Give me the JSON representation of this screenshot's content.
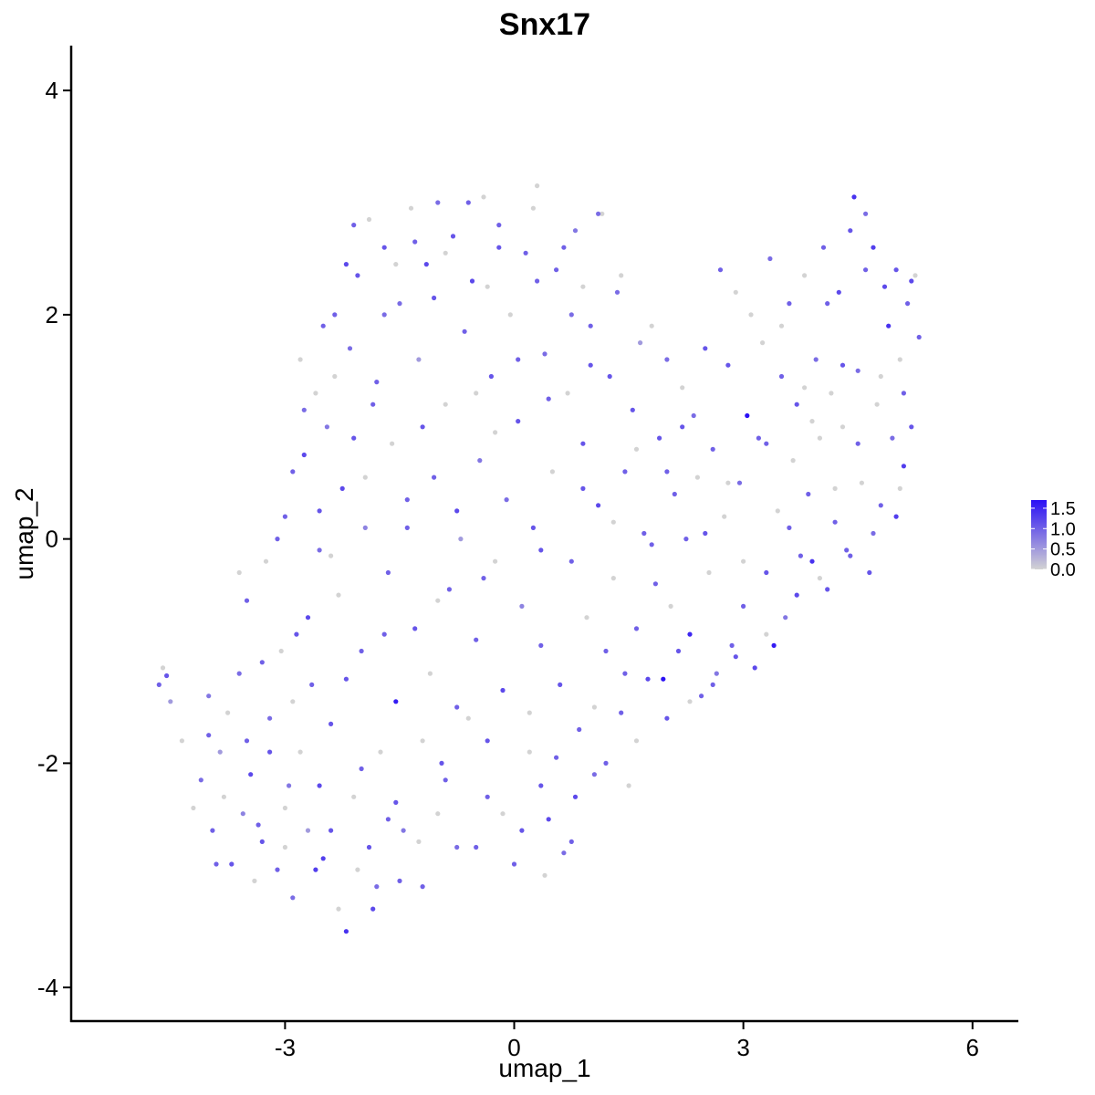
{
  "chart_data": {
    "type": "scatter",
    "title": "Snx17",
    "xlabel": "umap_1",
    "ylabel": "umap_2",
    "xlim": [
      -5.8,
      6.6
    ],
    "ylim": [
      -4.3,
      4.4
    ],
    "xticks": [
      -3,
      0,
      3,
      6
    ],
    "xtick_labels": [
      "-3",
      "0",
      "3",
      "6"
    ],
    "yticks": [
      -4,
      -2,
      0,
      2,
      4
    ],
    "ytick_labels": [
      "-4",
      "-2",
      "0",
      "2",
      "4"
    ],
    "grid": false,
    "color_scale": {
      "low": "#d3d3d3",
      "high": "#2a10f5",
      "min": 0,
      "max": 1.7,
      "ticks": [
        0,
        0.5,
        1.0,
        1.5
      ],
      "tick_labels": [
        "0.0",
        "0.5",
        "1.0",
        "1.5"
      ],
      "legend_position": "right"
    },
    "points": [
      [
        -4.65,
        -1.3,
        1.0
      ],
      [
        -4.55,
        -1.22,
        1.1
      ],
      [
        -4.5,
        -1.45,
        0.5
      ],
      [
        -4.6,
        -1.15,
        0.0
      ],
      [
        -4.35,
        -1.8,
        0.0
      ],
      [
        -4.1,
        -2.15,
        0.9
      ],
      [
        -4.0,
        -1.4,
        0.8
      ],
      [
        -3.95,
        -2.6,
        1.0
      ],
      [
        -3.85,
        -1.9,
        0.5
      ],
      [
        -3.8,
        -2.3,
        0.0
      ],
      [
        -3.7,
        -2.9,
        1.1
      ],
      [
        -3.6,
        -1.2,
        0.9
      ],
      [
        -3.55,
        -2.45,
        0.7
      ],
      [
        -3.5,
        -0.55,
        1.0
      ],
      [
        -3.45,
        -2.1,
        1.2
      ],
      [
        -3.4,
        -3.05,
        0.0
      ],
      [
        -3.3,
        -2.7,
        1.1
      ],
      [
        -3.25,
        -0.2,
        0.0
      ],
      [
        -3.2,
        -1.6,
        0.9
      ],
      [
        -3.1,
        -2.95,
        1.0
      ],
      [
        -3.05,
        -1.0,
        0.0
      ],
      [
        -3.0,
        0.2,
        1.0
      ],
      [
        -2.95,
        -2.2,
        0.8
      ],
      [
        -2.9,
        -3.2,
        0.9
      ],
      [
        -2.85,
        -0.85,
        1.1
      ],
      [
        -2.8,
        -1.9,
        0.0
      ],
      [
        -2.75,
        0.75,
        1.2
      ],
      [
        -2.7,
        -2.6,
        0.5
      ],
      [
        -2.65,
        -1.3,
        1.0
      ],
      [
        -2.6,
        1.3,
        0.0
      ],
      [
        -2.55,
        -0.1,
        0.9
      ],
      [
        -2.5,
        -2.85,
        1.3
      ],
      [
        -2.45,
        1.0,
        0.8
      ],
      [
        -2.4,
        -1.65,
        1.1
      ],
      [
        -2.35,
        2.0,
        1.0
      ],
      [
        -2.3,
        -0.5,
        0.0
      ],
      [
        -2.25,
        0.45,
        1.2
      ],
      [
        -2.2,
        -3.5,
        1.4
      ],
      [
        -2.15,
        1.7,
        0.9
      ],
      [
        -2.1,
        -2.3,
        0.0
      ],
      [
        -2.05,
        2.35,
        1.1
      ],
      [
        -2.0,
        -1.0,
        1.0
      ],
      [
        -1.95,
        0.1,
        0.7
      ],
      [
        -1.9,
        2.85,
        0.0
      ],
      [
        -1.85,
        -3.3,
        1.2
      ],
      [
        -1.8,
        1.4,
        1.0
      ],
      [
        -1.75,
        -1.9,
        0.0
      ],
      [
        -1.7,
        2.6,
        1.1
      ],
      [
        -1.65,
        -0.3,
        1.0
      ],
      [
        -1.6,
        0.85,
        0.0
      ],
      [
        -1.55,
        -1.45,
        1.6
      ],
      [
        -1.5,
        2.1,
        0.9
      ],
      [
        -1.45,
        -2.6,
        0.8
      ],
      [
        -1.4,
        0.35,
        1.0
      ],
      [
        -1.35,
        2.95,
        0.0
      ],
      [
        -1.3,
        -0.8,
        1.1
      ],
      [
        -1.25,
        1.6,
        0.5
      ],
      [
        -1.2,
        -3.1,
        1.0
      ],
      [
        -1.15,
        2.45,
        1.2
      ],
      [
        -1.1,
        -1.2,
        0.0
      ],
      [
        -1.05,
        0.55,
        1.0
      ],
      [
        -1.0,
        3.0,
        0.9
      ],
      [
        -0.95,
        -2.0,
        1.1
      ],
      [
        -0.9,
        1.2,
        0.0
      ],
      [
        -0.85,
        -0.45,
        1.0
      ],
      [
        -0.8,
        2.7,
        1.1
      ],
      [
        -0.75,
        -2.75,
        0.9
      ],
      [
        -0.7,
        0.0,
        0.5
      ],
      [
        -0.65,
        1.85,
        1.0
      ],
      [
        -0.6,
        -1.6,
        0.0
      ],
      [
        -0.55,
        2.3,
        1.2
      ],
      [
        -0.5,
        -0.9,
        1.0
      ],
      [
        -0.45,
        0.7,
        0.8
      ],
      [
        -0.4,
        3.05,
        0.0
      ],
      [
        -0.35,
        -2.3,
        1.0
      ],
      [
        -0.3,
        1.45,
        1.1
      ],
      [
        -0.25,
        -0.2,
        0.0
      ],
      [
        -0.2,
        2.8,
        1.0
      ],
      [
        -0.15,
        -1.35,
        1.2
      ],
      [
        -0.1,
        0.35,
        0.9
      ],
      [
        -0.05,
        2.0,
        0.0
      ],
      [
        0.0,
        -2.9,
        1.0
      ],
      [
        0.05,
        1.05,
        1.1
      ],
      [
        0.1,
        -0.6,
        0.7
      ],
      [
        0.15,
        2.55,
        1.0
      ],
      [
        0.2,
        -1.9,
        0.0
      ],
      [
        0.25,
        0.1,
        1.1
      ],
      [
        0.3,
        3.15,
        0.0
      ],
      [
        0.35,
        -0.95,
        1.0
      ],
      [
        0.4,
        1.65,
        0.9
      ],
      [
        0.45,
        -2.5,
        1.2
      ],
      [
        0.5,
        0.6,
        0.0
      ],
      [
        0.55,
        2.4,
        1.0
      ],
      [
        0.6,
        -1.3,
        1.1
      ],
      [
        0.65,
        -2.8,
        0.9
      ],
      [
        0.7,
        1.3,
        0.0
      ],
      [
        0.75,
        -0.2,
        1.0
      ],
      [
        0.8,
        2.75,
        0.8
      ],
      [
        0.85,
        -1.7,
        1.0
      ],
      [
        0.9,
        0.85,
        1.1
      ],
      [
        0.95,
        -0.7,
        0.0
      ],
      [
        1.0,
        1.9,
        1.0
      ],
      [
        1.05,
        -2.1,
        0.9
      ],
      [
        1.1,
        0.3,
        1.2
      ],
      [
        1.15,
        2.9,
        0.0
      ],
      [
        1.2,
        -1.0,
        1.0
      ],
      [
        1.25,
        1.45,
        1.1
      ],
      [
        1.3,
        -0.35,
        0.0
      ],
      [
        1.35,
        2.2,
        0.9
      ],
      [
        1.4,
        -1.55,
        1.0
      ],
      [
        1.45,
        0.6,
        1.0
      ],
      [
        1.5,
        -2.2,
        0.0
      ],
      [
        1.55,
        1.15,
        1.1
      ],
      [
        1.6,
        -0.8,
        1.0
      ],
      [
        1.65,
        1.75,
        0.5
      ],
      [
        1.7,
        0.05,
        1.0
      ],
      [
        1.75,
        -1.25,
        1.2
      ],
      [
        1.8,
        1.9,
        0.0
      ],
      [
        1.85,
        -0.4,
        1.0
      ],
      [
        1.9,
        0.9,
        1.1
      ],
      [
        1.95,
        -1.25,
        1.7
      ],
      [
        2.0,
        1.6,
        0.9
      ],
      [
        2.05,
        -0.6,
        0.0
      ],
      [
        2.1,
        0.4,
        1.0
      ],
      [
        2.15,
        -1.0,
        1.1
      ],
      [
        2.2,
        1.35,
        0.0
      ],
      [
        2.25,
        0.0,
        1.0
      ],
      [
        2.3,
        -0.85,
        1.5
      ],
      [
        2.35,
        1.1,
        0.9
      ],
      [
        2.4,
        0.55,
        0.0
      ],
      [
        2.45,
        -1.4,
        1.0
      ],
      [
        2.5,
        1.7,
        1.1
      ],
      [
        2.55,
        -0.3,
        0.0
      ],
      [
        2.6,
        0.8,
        1.0
      ],
      [
        2.65,
        -1.2,
        0.8
      ],
      [
        2.7,
        2.4,
        1.0
      ],
      [
        2.75,
        0.2,
        0.0
      ],
      [
        2.8,
        1.55,
        1.1
      ],
      [
        2.85,
        -0.95,
        1.0
      ],
      [
        2.9,
        2.2,
        0.0
      ],
      [
        2.95,
        0.5,
        0.9
      ],
      [
        3.0,
        -0.6,
        1.0
      ],
      [
        3.05,
        1.1,
        1.7
      ],
      [
        3.1,
        2.0,
        0.0
      ],
      [
        3.15,
        -1.15,
        1.2
      ],
      [
        3.2,
        0.9,
        1.0
      ],
      [
        3.25,
        1.75,
        0.0
      ],
      [
        3.3,
        -0.3,
        1.1
      ],
      [
        3.35,
        2.5,
        0.9
      ],
      [
        3.4,
        -0.95,
        1.6
      ],
      [
        3.45,
        0.25,
        0.0
      ],
      [
        3.5,
        1.45,
        1.0
      ],
      [
        3.55,
        -0.7,
        0.8
      ],
      [
        3.6,
        2.1,
        1.0
      ],
      [
        3.65,
        0.7,
        0.0
      ],
      [
        3.7,
        1.2,
        1.1
      ],
      [
        3.75,
        -0.15,
        1.0
      ],
      [
        3.8,
        2.35,
        0.0
      ],
      [
        3.85,
        0.4,
        1.0
      ],
      [
        3.9,
        -0.2,
        1.4
      ],
      [
        3.95,
        1.6,
        0.9
      ],
      [
        4.0,
        0.9,
        0.0
      ],
      [
        4.05,
        2.6,
        1.0
      ],
      [
        4.1,
        -0.45,
        1.1
      ],
      [
        4.15,
        1.3,
        0.0
      ],
      [
        4.2,
        0.15,
        1.0
      ],
      [
        4.25,
        2.2,
        1.2
      ],
      [
        4.3,
        1.0,
        0.0
      ],
      [
        4.35,
        -0.1,
        1.0
      ],
      [
        4.4,
        2.75,
        1.1
      ],
      [
        4.45,
        3.05,
        1.4
      ],
      [
        4.5,
        1.5,
        0.9
      ],
      [
        4.55,
        0.5,
        0.0
      ],
      [
        4.6,
        2.4,
        1.0
      ],
      [
        4.65,
        -0.3,
        1.1
      ],
      [
        4.7,
        2.6,
        1.3
      ],
      [
        4.75,
        1.2,
        0.0
      ],
      [
        4.8,
        0.3,
        1.0
      ],
      [
        4.85,
        2.25,
        1.2
      ],
      [
        4.9,
        1.9,
        1.4
      ],
      [
        4.95,
        0.9,
        0.9
      ],
      [
        5.0,
        2.4,
        1.1
      ],
      [
        5.05,
        1.6,
        0.0
      ],
      [
        5.1,
        0.65,
        1.3
      ],
      [
        5.15,
        2.1,
        1.0
      ],
      [
        5.2,
        1.0,
        1.1
      ],
      [
        5.25,
        2.35,
        0.0
      ],
      [
        5.3,
        1.8,
        1.0
      ],
      [
        5.2,
        2.3,
        1.2
      ],
      [
        5.0,
        0.2,
        1.3
      ],
      [
        -3.9,
        -2.9,
        1.0
      ],
      [
        -3.2,
        -1.9,
        1.1
      ],
      [
        -2.6,
        -2.95,
        1.3
      ],
      [
        -2.3,
        -3.3,
        0.0
      ],
      [
        -1.9,
        -2.75,
        1.1
      ],
      [
        -2.7,
        -0.7,
        1.2
      ],
      [
        -2.4,
        -0.15,
        0.0
      ],
      [
        -2.9,
        0.6,
        1.0
      ],
      [
        -2.1,
        0.9,
        1.1
      ],
      [
        -2.8,
        1.6,
        0.0
      ],
      [
        -2.5,
        1.9,
        1.0
      ],
      [
        -2.2,
        2.45,
        1.2
      ],
      [
        -1.7,
        2.0,
        0.9
      ],
      [
        -1.3,
        2.65,
        1.0
      ],
      [
        -0.9,
        2.55,
        0.0
      ],
      [
        -0.6,
        3.0,
        1.0
      ],
      [
        -0.2,
        2.6,
        1.1
      ],
      [
        0.25,
        2.95,
        0.0
      ],
      [
        0.65,
        2.6,
        1.0
      ],
      [
        0.9,
        2.25,
        0.0
      ],
      [
        1.1,
        2.9,
        0.9
      ],
      [
        0.4,
        -3.0,
        0.0
      ],
      [
        0.1,
        -2.6,
        1.1
      ],
      [
        -0.5,
        -2.75,
        1.0
      ],
      [
        -1.0,
        -2.45,
        0.0
      ],
      [
        -1.5,
        -3.05,
        1.0
      ],
      [
        -1.8,
        -3.1,
        0.9
      ],
      [
        0.8,
        -2.3,
        1.2
      ],
      [
        1.2,
        -2.0,
        1.0
      ],
      [
        1.6,
        -1.8,
        0.0
      ],
      [
        2.0,
        -1.6,
        1.1
      ],
      [
        2.3,
        -1.45,
        0.0
      ],
      [
        2.6,
        -1.3,
        1.0
      ],
      [
        2.9,
        -1.05,
        1.1
      ],
      [
        3.3,
        -0.85,
        0.0
      ],
      [
        3.7,
        -0.5,
        1.2
      ],
      [
        4.0,
        -0.35,
        0.0
      ],
      [
        4.4,
        -0.15,
        1.0
      ],
      [
        4.7,
        0.05,
        0.9
      ],
      [
        -3.5,
        -1.8,
        1.0
      ],
      [
        -3.0,
        -2.4,
        0.0
      ],
      [
        -2.55,
        -2.2,
        1.2
      ],
      [
        -2.0,
        -2.05,
        1.0
      ],
      [
        -1.55,
        -2.35,
        1.1
      ],
      [
        -1.2,
        -1.8,
        0.0
      ],
      [
        -0.75,
        -1.5,
        1.0
      ],
      [
        -0.35,
        -1.8,
        1.1
      ],
      [
        0.2,
        -1.55,
        0.0
      ],
      [
        0.55,
        -1.95,
        1.0
      ],
      [
        -3.3,
        -1.1,
        1.0
      ],
      [
        -2.9,
        -1.45,
        0.0
      ],
      [
        -2.2,
        -1.25,
        1.1
      ],
      [
        -1.7,
        -0.85,
        1.0
      ],
      [
        -1.0,
        -0.55,
        0.0
      ],
      [
        -0.4,
        -0.35,
        1.0
      ],
      [
        0.35,
        -0.1,
        1.1
      ],
      [
        -3.6,
        -0.3,
        0.0
      ],
      [
        -3.1,
        0.0,
        1.0
      ],
      [
        -2.55,
        0.25,
        1.1
      ],
      [
        -1.95,
        0.55,
        0.0
      ],
      [
        -1.4,
        0.1,
        1.0
      ],
      [
        -0.75,
        0.25,
        1.2
      ],
      [
        -0.25,
        0.95,
        0.0
      ],
      [
        0.45,
        1.25,
        1.0
      ],
      [
        1.0,
        1.55,
        1.1
      ],
      [
        -2.75,
        1.15,
        0.9
      ],
      [
        -2.35,
        1.45,
        0.0
      ],
      [
        -1.85,
        1.2,
        1.0
      ],
      [
        -1.2,
        1.0,
        1.1
      ],
      [
        -0.5,
        1.3,
        0.0
      ],
      [
        0.05,
        1.6,
        1.0
      ],
      [
        0.75,
        2.0,
        0.9
      ],
      [
        1.4,
        2.35,
        0.0
      ],
      [
        -2.1,
        2.8,
        1.0
      ],
      [
        -1.55,
        2.45,
        0.0
      ],
      [
        -1.05,
        2.15,
        1.1
      ],
      [
        -0.35,
        2.25,
        0.0
      ],
      [
        0.3,
        2.3,
        1.0
      ],
      [
        2.2,
        1.0,
        1.1
      ],
      [
        2.8,
        0.5,
        0.0
      ],
      [
        3.3,
        0.85,
        1.0
      ],
      [
        3.8,
        1.35,
        0.0
      ],
      [
        4.3,
        1.55,
        1.1
      ],
      [
        4.8,
        1.45,
        0.0
      ],
      [
        5.1,
        1.3,
        1.0
      ],
      [
        3.5,
        1.9,
        0.0
      ],
      [
        4.1,
        2.1,
        1.0
      ],
      [
        4.6,
        2.9,
        0.9
      ],
      [
        3.9,
        1.05,
        0.0
      ],
      [
        4.5,
        0.85,
        1.0
      ],
      [
        5.05,
        0.45,
        0.0
      ],
      [
        2.5,
        0.05,
        1.1
      ],
      [
        3.0,
        -0.2,
        0.0
      ],
      [
        3.6,
        0.1,
        1.0
      ],
      [
        4.2,
        0.45,
        0.0
      ],
      [
        1.8,
        -0.05,
        1.0
      ],
      [
        1.3,
        0.15,
        0.0
      ],
      [
        0.9,
        0.45,
        1.1
      ],
      [
        1.6,
        0.8,
        0.0
      ],
      [
        2.0,
        0.6,
        1.0
      ],
      [
        -4.2,
        -2.4,
        0.0
      ],
      [
        -4.0,
        -1.75,
        1.0
      ],
      [
        -3.75,
        -1.55,
        0.0
      ],
      [
        -3.35,
        -2.55,
        1.0
      ],
      [
        -3.0,
        -2.75,
        0.0
      ],
      [
        -2.4,
        -2.6,
        1.1
      ],
      [
        -2.05,
        -2.95,
        0.0
      ],
      [
        -1.65,
        -2.5,
        1.0
      ],
      [
        -1.25,
        -2.7,
        0.0
      ],
      [
        -0.9,
        -2.15,
        1.0
      ],
      [
        -0.15,
        -2.45,
        0.0
      ],
      [
        0.35,
        -2.2,
        1.1
      ],
      [
        0.75,
        -2.7,
        1.0
      ],
      [
        1.05,
        -1.5,
        0.0
      ],
      [
        1.45,
        -1.2,
        1.0
      ]
    ]
  }
}
